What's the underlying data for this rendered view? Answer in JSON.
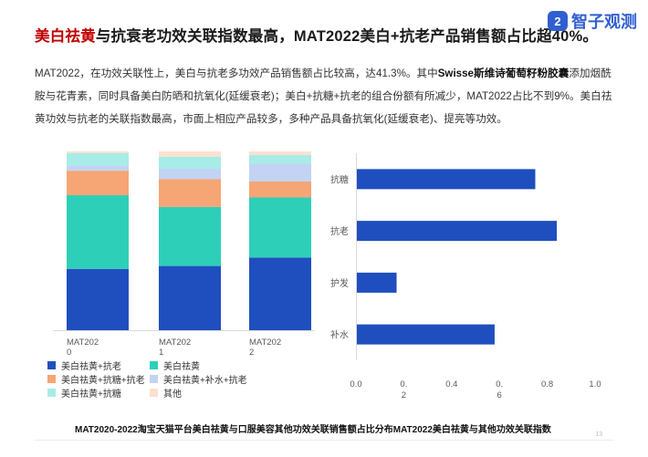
{
  "header": {
    "title_highlight": "美白祛黄",
    "title_rest": "与抗衰老功效关联指数最高，MAT2022美白+抗老产品销售额占比超40%。",
    "logo_mark": "2",
    "logo_text": "智子观测"
  },
  "paragraph": {
    "part1": "MAT2022，在功效关联性上，美白与抗老多功效产品销售额占比较高，达41.3%。其中",
    "bold": "Swisse斯维诗葡萄籽粉胶囊",
    "part2": "添加烟酰胺与花青素，同时具备美白防晒和抗氧化(延缓衰老)；美白+抗糖+抗老的组合份额有所减少，MAT2022占比不到9%。美白祛黄功效与抗老的关联指数最高，市面上相应产品较多，多种产品具备抗氧化(延缓衰老)、提亮等功效。"
  },
  "caption": "MAT2020-2022淘宝天猫平台美白祛黄与口服美容其他功效关联销售额占比分布MAT2022美白祛黄与其他功效关联指数",
  "page_number": "13",
  "chart_data": [
    {
      "type": "bar",
      "stacked": true,
      "orientation": "vertical",
      "categories": [
        "MAT2020",
        "MAT2021",
        "MAT2022"
      ],
      "series": [
        {
          "name": "美白祛黄+抗老",
          "color": "#1f4fbf",
          "values": [
            0.35,
            0.37,
            0.41
          ]
        },
        {
          "name": "美白祛黄",
          "color": "#2ecfb8",
          "values": [
            0.42,
            0.34,
            0.34
          ]
        },
        {
          "name": "美白祛黄+抗糖+抗老",
          "color": "#f6a574",
          "values": [
            0.14,
            0.16,
            0.09
          ]
        },
        {
          "name": "美白祛黄+补水+抗老",
          "color": "#c3d3f3",
          "values": [
            0.03,
            0.06,
            0.1
          ]
        },
        {
          "name": "美白祛黄+抗糖",
          "color": "#a7ece6",
          "values": [
            0.07,
            0.07,
            0.05
          ]
        },
        {
          "name": "其他",
          "color": "#fde0d0",
          "values": [
            0.01,
            0.03,
            0.02
          ]
        }
      ],
      "legend_position": "bottom"
    },
    {
      "type": "bar",
      "orientation": "horizontal",
      "categories": [
        "抗糖",
        "抗老",
        "护发",
        "补水"
      ],
      "values": [
        0.75,
        0.84,
        0.17,
        0.58
      ],
      "color": "#1f4fbf",
      "xlim": [
        0,
        1.0
      ],
      "xticks": [
        "0.0",
        "0.2",
        "0.4",
        "0.6",
        "0.8",
        "1.0"
      ]
    }
  ]
}
